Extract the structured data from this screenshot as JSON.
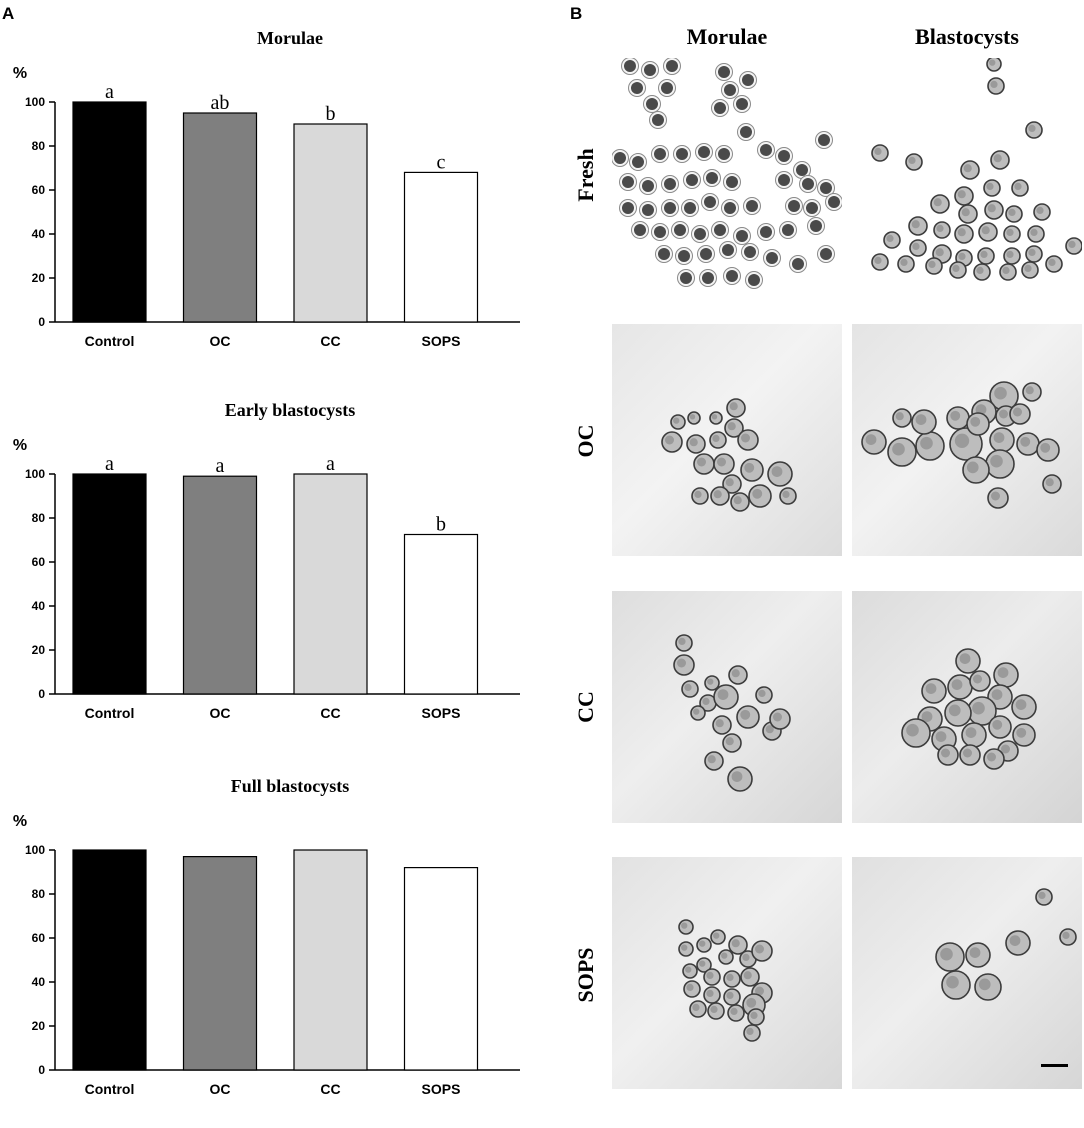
{
  "panel_a_label": "A",
  "panel_b_label": "B",
  "chart_data": [
    {
      "type": "bar",
      "title": "Morulae",
      "ylabel": "%",
      "xlabel": "",
      "ylim": [
        0,
        100
      ],
      "yticks": [
        0,
        20,
        40,
        60,
        80,
        100
      ],
      "categories": [
        "Control",
        "OC",
        "CC",
        "SOPS"
      ],
      "values": [
        100,
        95,
        90,
        68
      ],
      "letters": [
        "a",
        "ab",
        "b",
        "c"
      ],
      "colors": [
        "#000000",
        "#7f7f7f",
        "#d9d9d9",
        "#ffffff"
      ]
    },
    {
      "type": "bar",
      "title": "Early blastocysts",
      "ylabel": "%",
      "xlabel": "",
      "ylim": [
        0,
        100
      ],
      "yticks": [
        0,
        20,
        40,
        60,
        80,
        100
      ],
      "categories": [
        "Control",
        "OC",
        "CC",
        "SOPS"
      ],
      "values": [
        100,
        99,
        100,
        72.5
      ],
      "letters": [
        "a",
        "a",
        "a",
        "b"
      ],
      "colors": [
        "#000000",
        "#7f7f7f",
        "#d9d9d9",
        "#ffffff"
      ]
    },
    {
      "type": "bar",
      "title": "Full blastocysts",
      "ylabel": "%",
      "xlabel": "",
      "ylim": [
        0,
        100
      ],
      "yticks": [
        0,
        20,
        40,
        60,
        80,
        100
      ],
      "categories": [
        "Control",
        "OC",
        "CC",
        "SOPS"
      ],
      "values": [
        100,
        97,
        100,
        92
      ],
      "letters": [
        "",
        "",
        "",
        ""
      ],
      "colors": [
        "#000000",
        "#7f7f7f",
        "#d9d9d9",
        "#ffffff"
      ]
    }
  ],
  "micrographs": {
    "columns": [
      "Morulae",
      "Blastocysts"
    ],
    "rows": [
      "Fresh",
      "OC",
      "CC",
      "SOPS"
    ]
  }
}
